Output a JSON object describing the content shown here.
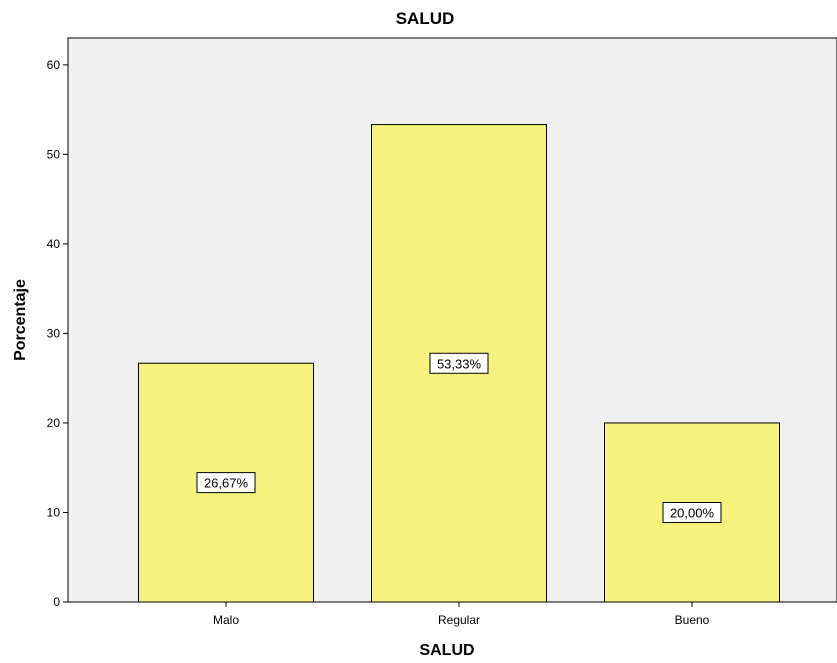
{
  "chart_data": {
    "type": "bar",
    "title": "SALUD",
    "xlabel": "SALUD",
    "ylabel": "Porcentaje",
    "categories": [
      "Malo",
      "Regular",
      "Bueno"
    ],
    "values": [
      26.67,
      53.33,
      20.0
    ],
    "data_labels": [
      "26,67%",
      "53,33%",
      "20,00%"
    ],
    "ylim": [
      0,
      63
    ],
    "yticks": [
      0,
      10,
      20,
      30,
      40,
      50,
      60
    ],
    "grid": false,
    "legend": "none",
    "colors": {
      "plot_background": "#f0f0f0",
      "bar_fill": "#f7f27d",
      "bar_stroke": "#000000",
      "label_box": "#ffffff"
    }
  }
}
